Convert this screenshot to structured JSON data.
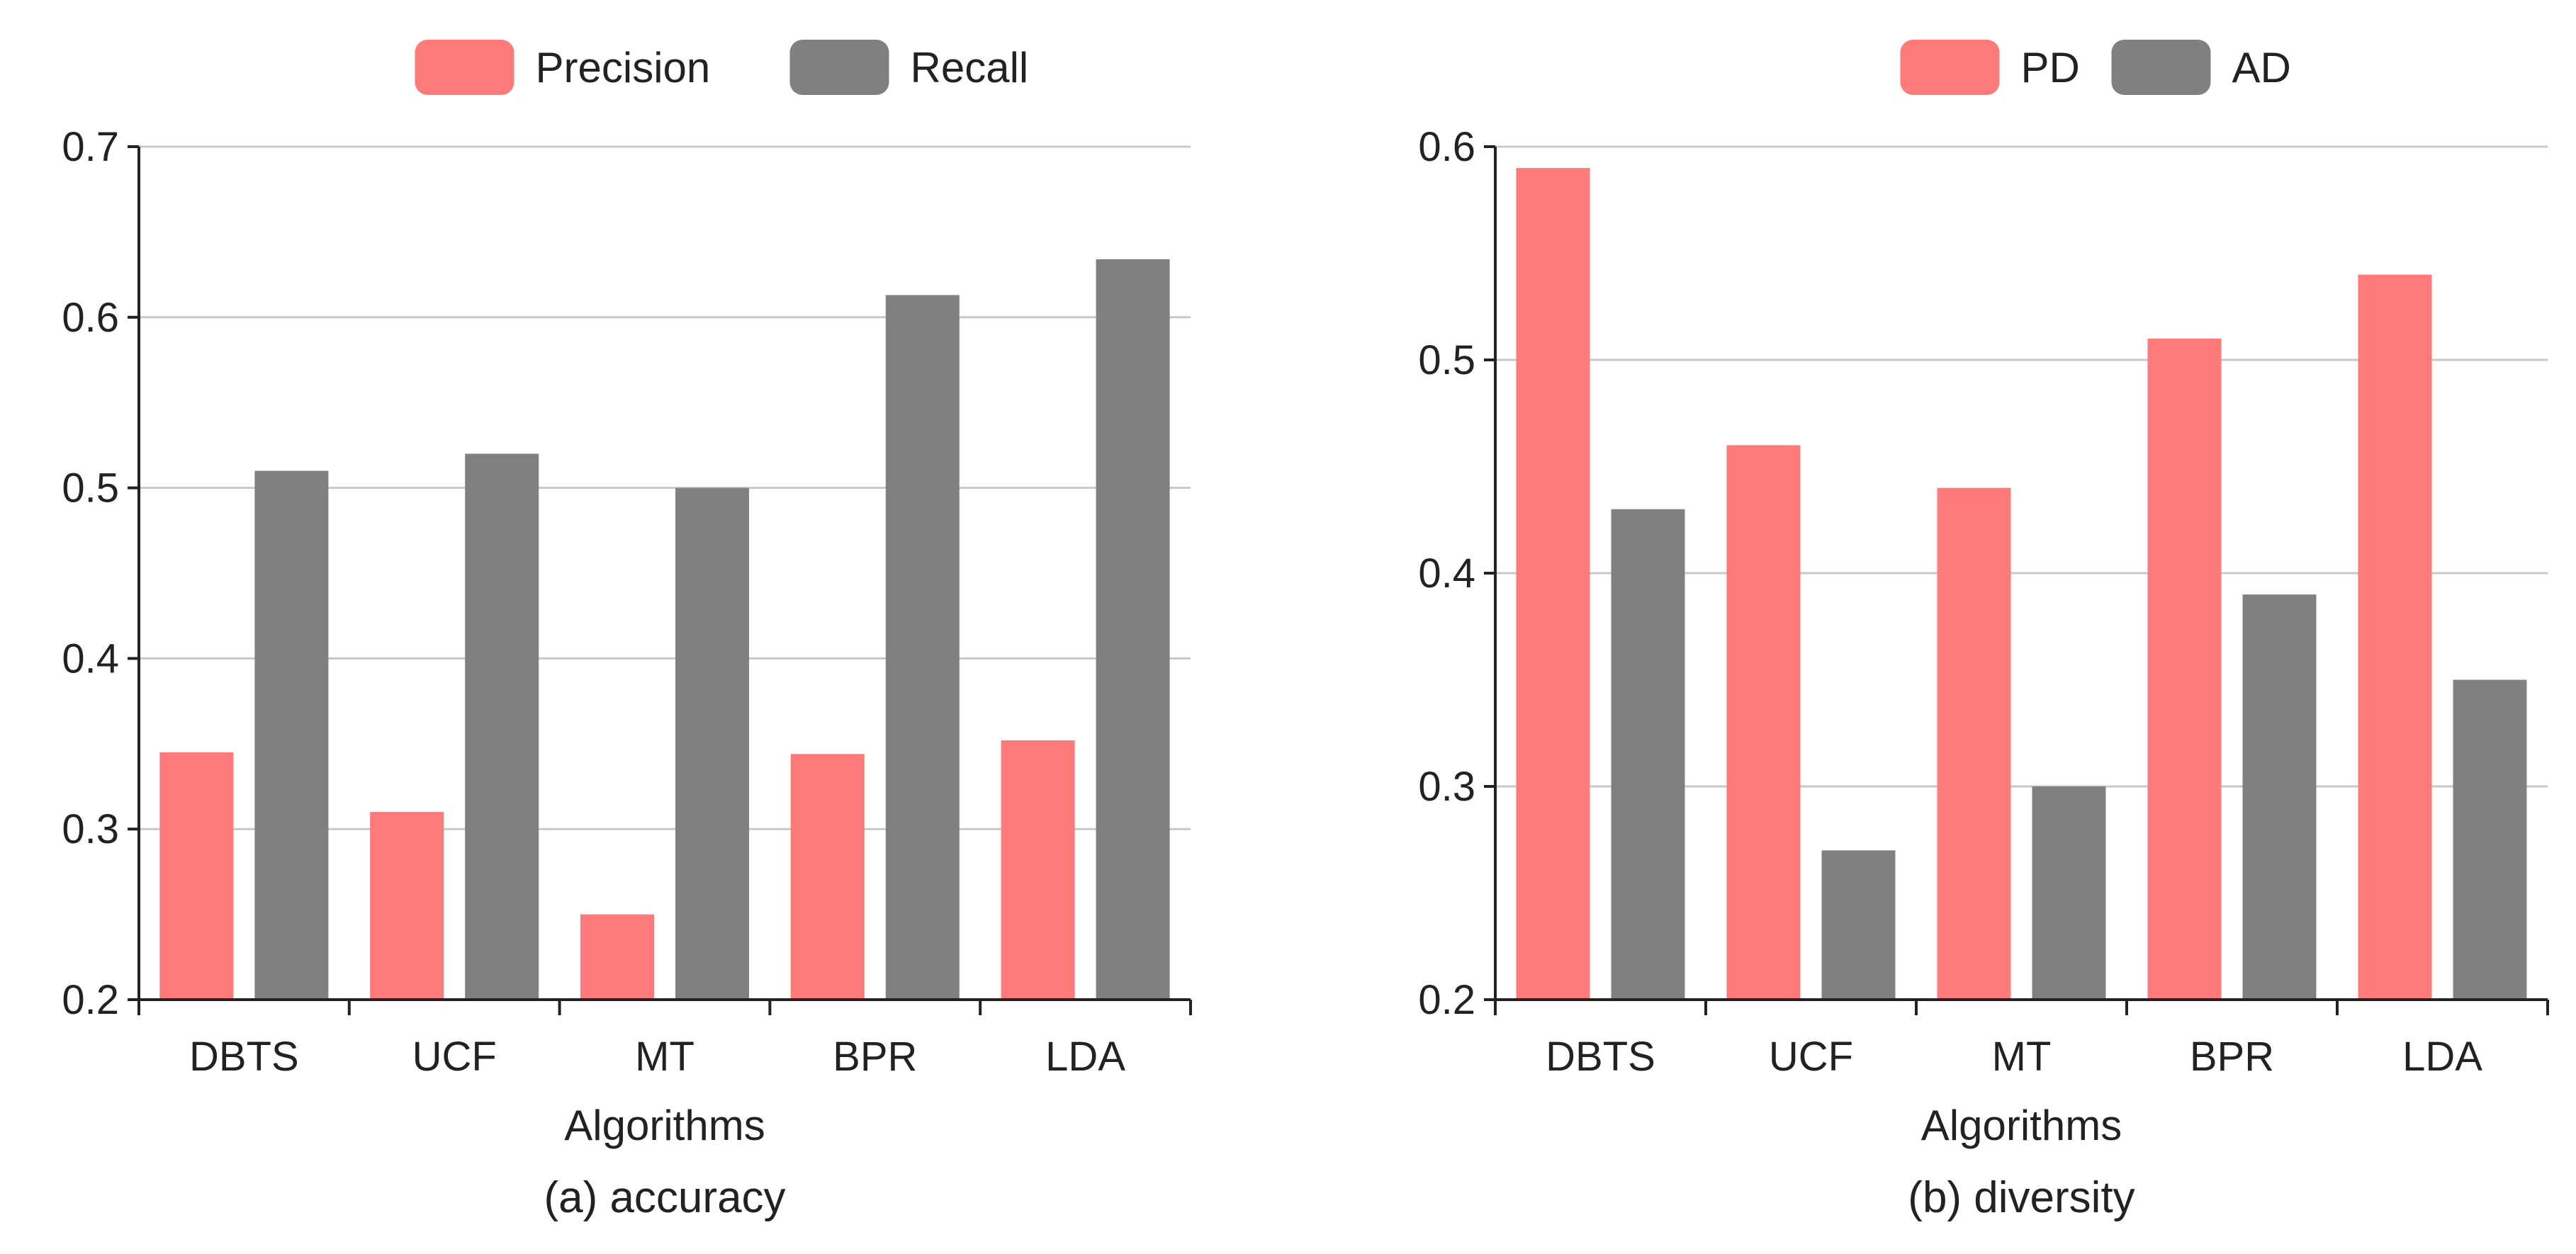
{
  "chart_data": [
    {
      "type": "bar",
      "title": "",
      "caption": "(a) accuracy",
      "xlabel": "Algorithms",
      "ylabel": "",
      "categories": [
        "DBTS",
        "UCF",
        "MT",
        "BPR",
        "LDA"
      ],
      "ylim": [
        0.2,
        0.7
      ],
      "yticks": [
        "0.2",
        "0.3",
        "0.4",
        "0.5",
        "0.6",
        "0.7"
      ],
      "grid": true,
      "legend_position": "top-center",
      "series": [
        {
          "name": "Precision",
          "color": "#fe7979",
          "values": [
            0.345,
            0.31,
            0.25,
            0.344,
            0.352
          ]
        },
        {
          "name": "Recall",
          "color": "#808080",
          "values": [
            0.51,
            0.52,
            0.5,
            0.613,
            0.634
          ]
        }
      ]
    },
    {
      "type": "bar",
      "title": "",
      "caption": "(b) diversity",
      "xlabel": "Algorithms",
      "ylabel": "",
      "categories": [
        "DBTS",
        "UCF",
        "MT",
        "BPR",
        "LDA"
      ],
      "ylim": [
        0.2,
        0.6
      ],
      "yticks": [
        "0.2",
        "0.3",
        "0.4",
        "0.5",
        "0.6"
      ],
      "grid": true,
      "legend_position": "top-center",
      "series": [
        {
          "name": "PD",
          "color": "#fe7979",
          "values": [
            0.59,
            0.46,
            0.44,
            0.51,
            0.54
          ]
        },
        {
          "name": "AD",
          "color": "#808080",
          "values": [
            0.43,
            0.27,
            0.3,
            0.39,
            0.35
          ]
        }
      ]
    }
  ]
}
